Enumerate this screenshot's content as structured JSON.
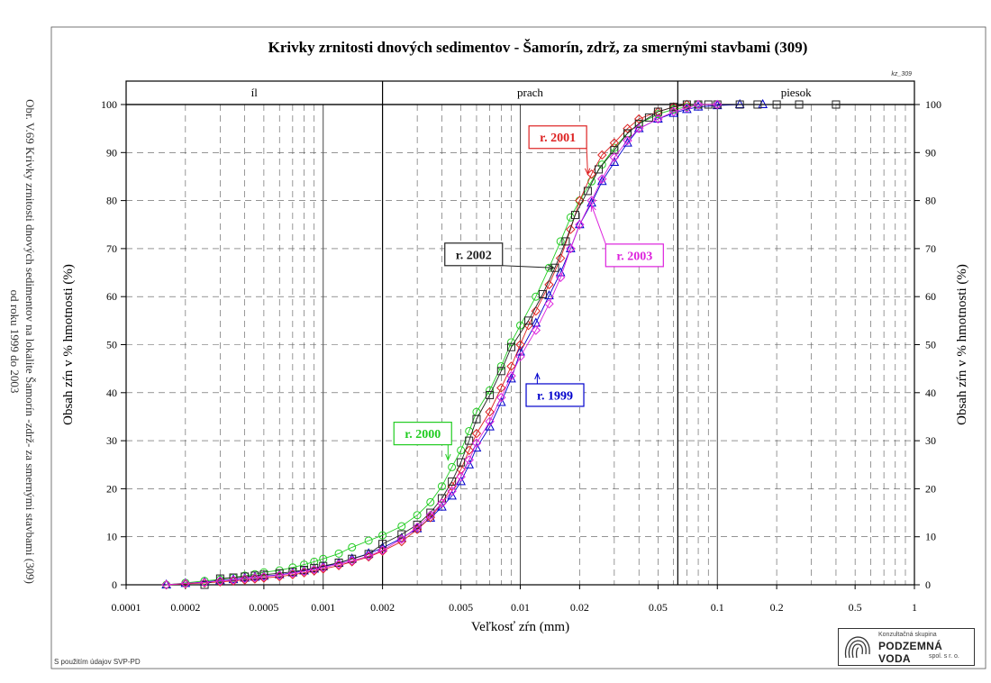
{
  "side_caption": {
    "line1": "Obr. V.69 Krivky zrnitosti dnových sedimentov na lokalite Šamorín -zdrž- za smernými stavbami (309)",
    "line2": "od roku 1999 do 2003"
  },
  "footnote": "S použitím údajov SVP-PD",
  "chart_code": "kz_309",
  "logo": {
    "line1": "Konzultačná skupina",
    "line2": "PODZEMNÁ VODA",
    "line3": "spol. s r. o.",
    "icon": "fingerprint-logo-icon"
  },
  "chart_data": {
    "type": "scatter",
    "title": "Krivky zrnitosti dnových sedimentov - Šamorín, zdrž, za smernými stavbami (309)",
    "xlabel": "Veľkosť zŕn (mm)",
    "ylabel": "Obsah zŕn v % hmotnosti (%)",
    "ylabel_right": "Obsah zŕn v % hmotnosti (%)",
    "x_scale": "log",
    "xlim": [
      0.0001,
      1
    ],
    "ylim": [
      0,
      100
    ],
    "x_ticks": [
      {
        "v": 0.0001,
        "label": "0.0001"
      },
      {
        "v": 0.0002,
        "label": "0.0002"
      },
      {
        "v": 0.0005,
        "label": "0.0005"
      },
      {
        "v": 0.001,
        "label": "0.001"
      },
      {
        "v": 0.002,
        "label": "0.002"
      },
      {
        "v": 0.005,
        "label": "0.005"
      },
      {
        "v": 0.01,
        "label": "0.01"
      },
      {
        "v": 0.02,
        "label": "0.02"
      },
      {
        "v": 0.05,
        "label": "0.05"
      },
      {
        "v": 0.1,
        "label": "0.1"
      },
      {
        "v": 0.2,
        "label": "0.2"
      },
      {
        "v": 0.5,
        "label": "0.5"
      },
      {
        "v": 1,
        "label": "1"
      }
    ],
    "y_ticks": [
      0,
      10,
      20,
      30,
      40,
      50,
      60,
      70,
      80,
      90,
      100
    ],
    "grid": true,
    "zones": [
      {
        "label": "íl",
        "from": 0.0001,
        "to": 0.002
      },
      {
        "label": "prach",
        "from": 0.002,
        "to": 0.063
      },
      {
        "label": "piesok",
        "from": 0.063,
        "to": 1
      }
    ],
    "series": [
      {
        "name": "r. 1999",
        "color": "#0000cc",
        "marker": "triangle",
        "label_x": 0.015,
        "label_y": 39.5,
        "arrow_x": 0.0122,
        "arrow_y": 44,
        "points": [
          [
            0.00016,
            0
          ],
          [
            0.0002,
            0.3
          ],
          [
            0.00025,
            0.6
          ],
          [
            0.0003,
            0.9
          ],
          [
            0.00035,
            1.1
          ],
          [
            0.0004,
            1.4
          ],
          [
            0.00045,
            1.6
          ],
          [
            0.0005,
            1.8
          ],
          [
            0.0006,
            2.1
          ],
          [
            0.0007,
            2.5
          ],
          [
            0.0008,
            2.9
          ],
          [
            0.0009,
            3.3
          ],
          [
            0.001,
            3.8
          ],
          [
            0.0012,
            4.5
          ],
          [
            0.0014,
            5.4
          ],
          [
            0.0017,
            6.5
          ],
          [
            0.002,
            7.7
          ],
          [
            0.0025,
            9.7
          ],
          [
            0.003,
            11.7
          ],
          [
            0.0035,
            13.9
          ],
          [
            0.004,
            16.2
          ],
          [
            0.0045,
            18.5
          ],
          [
            0.005,
            21.5
          ],
          [
            0.0055,
            25
          ],
          [
            0.006,
            28.5
          ],
          [
            0.007,
            32.9
          ],
          [
            0.008,
            38
          ],
          [
            0.009,
            42.9
          ],
          [
            0.01,
            48.5
          ],
          [
            0.012,
            54.5
          ],
          [
            0.014,
            60.2
          ],
          [
            0.016,
            65
          ],
          [
            0.018,
            70
          ],
          [
            0.02,
            75
          ],
          [
            0.023,
            79.5
          ],
          [
            0.026,
            84
          ],
          [
            0.03,
            88
          ],
          [
            0.035,
            92
          ],
          [
            0.04,
            95
          ],
          [
            0.05,
            97
          ],
          [
            0.06,
            98.2
          ],
          [
            0.07,
            99
          ],
          [
            0.08,
            99.5
          ],
          [
            0.1,
            99.8
          ],
          [
            0.13,
            100
          ],
          [
            0.17,
            100
          ]
        ]
      },
      {
        "name": "r. 2000",
        "color": "#22cc22",
        "marker": "circle",
        "label_x": 0.0032,
        "label_y": 31.5,
        "arrow_x": 0.0043,
        "arrow_y": 26,
        "points": [
          [
            0.00016,
            0
          ],
          [
            0.0002,
            0.4
          ],
          [
            0.00025,
            0.8
          ],
          [
            0.0003,
            1.1
          ],
          [
            0.00035,
            1.5
          ],
          [
            0.0004,
            1.9
          ],
          [
            0.00045,
            2.2
          ],
          [
            0.0005,
            2.6
          ],
          [
            0.0006,
            3
          ],
          [
            0.0007,
            3.6
          ],
          [
            0.0008,
            4.2
          ],
          [
            0.0009,
            4.8
          ],
          [
            0.001,
            5.4
          ],
          [
            0.0012,
            6.5
          ],
          [
            0.0014,
            7.8
          ],
          [
            0.0017,
            9.2
          ],
          [
            0.002,
            10.3
          ],
          [
            0.0025,
            12.2
          ],
          [
            0.003,
            14.5
          ],
          [
            0.0035,
            17.2
          ],
          [
            0.004,
            20.5
          ],
          [
            0.0045,
            24.5
          ],
          [
            0.005,
            28
          ],
          [
            0.0055,
            32
          ],
          [
            0.006,
            36
          ],
          [
            0.007,
            40.5
          ],
          [
            0.008,
            45.5
          ],
          [
            0.009,
            50.5
          ],
          [
            0.01,
            54
          ],
          [
            0.012,
            60
          ],
          [
            0.014,
            66
          ],
          [
            0.016,
            71.5
          ],
          [
            0.018,
            76.5
          ],
          [
            0.02,
            80
          ],
          [
            0.023,
            84
          ],
          [
            0.026,
            87.5
          ],
          [
            0.03,
            91
          ],
          [
            0.035,
            94
          ],
          [
            0.04,
            96
          ],
          [
            0.05,
            98
          ],
          [
            0.06,
            99
          ],
          [
            0.07,
            99.5
          ],
          [
            0.08,
            100
          ]
        ]
      },
      {
        "name": "r. 2001",
        "color": "#dd2222",
        "marker": "diamond",
        "label_x": 0.0155,
        "label_y": 93.2,
        "arrow_x": 0.022,
        "arrow_y": 85.5,
        "points": [
          [
            0.00016,
            0
          ],
          [
            0.0002,
            0.2
          ],
          [
            0.00025,
            0.4
          ],
          [
            0.0003,
            0.6
          ],
          [
            0.00035,
            0.8
          ],
          [
            0.0004,
            1
          ],
          [
            0.00045,
            1.2
          ],
          [
            0.0005,
            1.4
          ],
          [
            0.0006,
            1.7
          ],
          [
            0.0007,
            2.1
          ],
          [
            0.0008,
            2.5
          ],
          [
            0.0009,
            2.9
          ],
          [
            0.001,
            3.3
          ],
          [
            0.0012,
            4
          ],
          [
            0.0014,
            4.8
          ],
          [
            0.0017,
            5.8
          ],
          [
            0.002,
            7
          ],
          [
            0.0025,
            9
          ],
          [
            0.003,
            11.5
          ],
          [
            0.0035,
            14
          ],
          [
            0.004,
            17
          ],
          [
            0.0045,
            20.5
          ],
          [
            0.005,
            24
          ],
          [
            0.0055,
            28
          ],
          [
            0.006,
            31.5
          ],
          [
            0.007,
            36
          ],
          [
            0.008,
            41
          ],
          [
            0.009,
            45.5
          ],
          [
            0.01,
            50
          ],
          [
            0.011,
            54
          ],
          [
            0.012,
            57
          ],
          [
            0.014,
            62.5
          ],
          [
            0.016,
            68
          ],
          [
            0.018,
            74
          ],
          [
            0.02,
            80
          ],
          [
            0.023,
            85.5
          ],
          [
            0.026,
            89.5
          ],
          [
            0.03,
            92
          ],
          [
            0.035,
            95
          ],
          [
            0.04,
            97
          ],
          [
            0.05,
            98.5
          ],
          [
            0.06,
            99.5
          ],
          [
            0.07,
            100
          ]
        ]
      },
      {
        "name": "r. 2002",
        "color": "#222222",
        "marker": "square",
        "label_x": 0.0058,
        "label_y": 68.8,
        "arrow_x": 0.0148,
        "arrow_y": 66,
        "points": [
          [
            0.00025,
            0
          ],
          [
            0.0003,
            1.3
          ],
          [
            0.00035,
            1.5
          ],
          [
            0.0004,
            1.7
          ],
          [
            0.00045,
            1.9
          ],
          [
            0.0005,
            2.1
          ],
          [
            0.0006,
            2.4
          ],
          [
            0.0007,
            2.7
          ],
          [
            0.0008,
            3.1
          ],
          [
            0.0009,
            3.5
          ],
          [
            0.001,
            3.9
          ],
          [
            0.0012,
            4.6
          ],
          [
            0.0014,
            5.4
          ],
          [
            0.0017,
            6.4
          ],
          [
            0.002,
            8.5
          ],
          [
            0.0025,
            10.5
          ],
          [
            0.003,
            12.5
          ],
          [
            0.0035,
            15
          ],
          [
            0.004,
            18
          ],
          [
            0.0045,
            21.5
          ],
          [
            0.005,
            25.5
          ],
          [
            0.0055,
            30
          ],
          [
            0.006,
            34.5
          ],
          [
            0.007,
            39.5
          ],
          [
            0.008,
            44.5
          ],
          [
            0.009,
            49.5
          ],
          [
            0.011,
            55
          ],
          [
            0.013,
            60.5
          ],
          [
            0.015,
            66
          ],
          [
            0.017,
            71.5
          ],
          [
            0.019,
            77
          ],
          [
            0.022,
            82
          ],
          [
            0.025,
            86.5
          ],
          [
            0.03,
            90.5
          ],
          [
            0.035,
            94
          ],
          [
            0.04,
            96
          ],
          [
            0.045,
            97.3
          ],
          [
            0.05,
            98.5
          ],
          [
            0.06,
            99.5
          ],
          [
            0.07,
            100
          ],
          [
            0.08,
            100
          ],
          [
            0.09,
            100
          ],
          [
            0.1,
            100
          ],
          [
            0.13,
            100
          ],
          [
            0.16,
            100
          ],
          [
            0.2,
            100
          ],
          [
            0.26,
            100
          ],
          [
            0.4,
            100
          ]
        ]
      },
      {
        "name": "r. 2003",
        "color": "#dd22dd",
        "marker": "diamond",
        "label_x": 0.038,
        "label_y": 68.6,
        "arrow_x": 0.023,
        "arrow_y": 79,
        "points": [
          [
            0.00016,
            0
          ],
          [
            0.0002,
            0.3
          ],
          [
            0.00025,
            0.5
          ],
          [
            0.0003,
            0.8
          ],
          [
            0.00035,
            1
          ],
          [
            0.0004,
            1.3
          ],
          [
            0.00045,
            1.5
          ],
          [
            0.0005,
            1.7
          ],
          [
            0.0006,
            2
          ],
          [
            0.0007,
            2.4
          ],
          [
            0.0008,
            2.8
          ],
          [
            0.0009,
            3.2
          ],
          [
            0.001,
            3.6
          ],
          [
            0.0012,
            4.3
          ],
          [
            0.0014,
            5
          ],
          [
            0.0017,
            6
          ],
          [
            0.002,
            7.2
          ],
          [
            0.0025,
            9.5
          ],
          [
            0.003,
            12
          ],
          [
            0.0035,
            14.5
          ],
          [
            0.004,
            17
          ],
          [
            0.0045,
            19.5
          ],
          [
            0.005,
            22.5
          ],
          [
            0.0055,
            26
          ],
          [
            0.006,
            29.5
          ],
          [
            0.007,
            34
          ],
          [
            0.008,
            39
          ],
          [
            0.009,
            43.5
          ],
          [
            0.01,
            47.5
          ],
          [
            0.012,
            53
          ],
          [
            0.014,
            58.5
          ],
          [
            0.016,
            64
          ],
          [
            0.018,
            70
          ],
          [
            0.02,
            75
          ],
          [
            0.023,
            80
          ],
          [
            0.026,
            84.5
          ],
          [
            0.03,
            89
          ],
          [
            0.035,
            92.5
          ],
          [
            0.04,
            95
          ],
          [
            0.05,
            97
          ],
          [
            0.06,
            98.5
          ],
          [
            0.07,
            99.3
          ],
          [
            0.08,
            100
          ],
          [
            0.1,
            100
          ]
        ]
      }
    ]
  }
}
